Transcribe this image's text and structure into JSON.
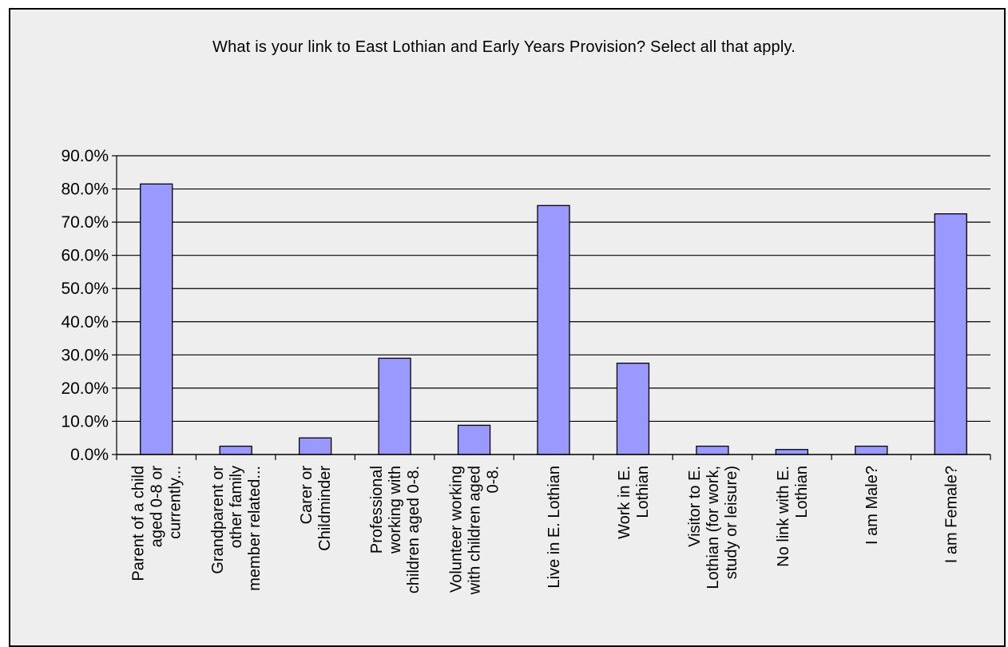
{
  "chart_data": {
    "type": "bar",
    "title": "What is your link to East Lothian and Early Years Provision? Select all that apply.",
    "xlabel": "",
    "ylabel": "",
    "ylim": [
      0,
      90
    ],
    "yticks": [
      "0.0%",
      "10.0%",
      "20.0%",
      "30.0%",
      "40.0%",
      "50.0%",
      "60.0%",
      "70.0%",
      "80.0%",
      "90.0%"
    ],
    "grid": true,
    "categories": [
      [
        "Parent of a child",
        "aged 0-8 or",
        "currently..."
      ],
      [
        "Grandparent or",
        "other family",
        "member related..."
      ],
      [
        "Carer or",
        "Childminder"
      ],
      [
        "Professional",
        "working with",
        "children aged 0-8."
      ],
      [
        "Volunteer working",
        "with children aged",
        "0-8."
      ],
      [
        "Live in E. Lothian"
      ],
      [
        "Work in E.",
        "Lothian"
      ],
      [
        "Visitor to E.",
        "Lothian (for work,",
        "study or leisure)"
      ],
      [
        "No link with E.",
        "Lothian"
      ],
      [
        "I am Male?"
      ],
      [
        "I am Female?"
      ]
    ],
    "values": [
      81.5,
      2.5,
      5.0,
      29.0,
      8.8,
      75.0,
      27.5,
      2.5,
      1.5,
      2.5,
      72.5
    ],
    "colors": {
      "bar": "#9999ff",
      "bar_stroke": "#000000",
      "background": "#eeeeee"
    }
  }
}
